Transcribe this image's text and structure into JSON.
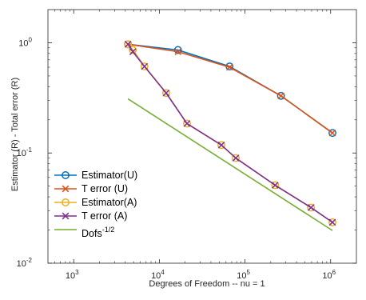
{
  "chart_data": {
    "type": "line",
    "title": "",
    "xlabel": "Degrees of Freedom -- nu = 1",
    "ylabel": "Estimator (R) - Total error (R)",
    "xscale": "log",
    "yscale": "log",
    "xlim": [
      500,
      2000000
    ],
    "ylim": [
      0.01,
      2
    ],
    "grid": false,
    "legend_position": "bottom-left",
    "x_ticks": [
      {
        "value": 1000,
        "base": "10",
        "exp": "3"
      },
      {
        "value": 10000,
        "base": "10",
        "exp": "4"
      },
      {
        "value": 100000,
        "base": "10",
        "exp": "5"
      },
      {
        "value": 1000000,
        "base": "10",
        "exp": "6"
      }
    ],
    "y_ticks": [
      {
        "value": 1,
        "base": "10",
        "exp": "0"
      },
      {
        "value": 0.1,
        "base": "10",
        "exp": "-1"
      },
      {
        "value": 0.01,
        "base": "10",
        "exp": "-2"
      }
    ],
    "series": [
      {
        "name": "Estimator(U)",
        "color": "#0072BD",
        "marker": "circle",
        "x": [
          4300,
          16500,
          66000,
          263000,
          1050000
        ],
        "y": [
          0.97,
          0.86,
          0.61,
          0.33,
          0.152
        ]
      },
      {
        "name": "T error (U)",
        "color": "#D95319",
        "marker": "x",
        "x": [
          4300,
          16500,
          66000,
          263000,
          1050000
        ],
        "y": [
          0.97,
          0.83,
          0.6,
          0.33,
          0.152
        ]
      },
      {
        "name": "Estimator(A)",
        "color": "#EDB120",
        "marker": "circle",
        "x": [
          4300,
          4900,
          6700,
          12000,
          21000,
          53000,
          78000,
          225000,
          590000,
          1050000
        ],
        "y": [
          0.97,
          0.86,
          0.61,
          0.35,
          0.185,
          0.118,
          0.09,
          0.051,
          0.032,
          0.0235
        ]
      },
      {
        "name": "T error (A)",
        "color": "#7E2F8E",
        "marker": "x",
        "x": [
          4300,
          4900,
          6700,
          12000,
          21000,
          53000,
          78000,
          225000,
          590000,
          1050000
        ],
        "y": [
          0.97,
          0.83,
          0.61,
          0.35,
          0.185,
          0.118,
          0.09,
          0.051,
          0.032,
          0.0235
        ]
      },
      {
        "name": "Dofs",
        "name_sup": "-1/2",
        "color": "#77AC30",
        "marker": "none",
        "x": [
          4300,
          1050000
        ],
        "y": [
          0.31,
          0.0198
        ]
      }
    ]
  }
}
